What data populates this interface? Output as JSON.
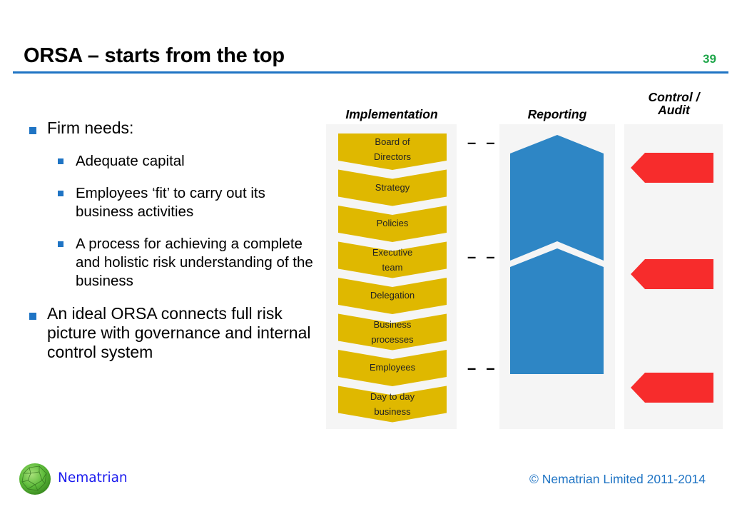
{
  "slide": {
    "title": "ORSA – starts from the top",
    "page_number": "39"
  },
  "bullets": {
    "level1_a": "Firm needs:",
    "sub": [
      "Adequate capital",
      "Employees ‘fit’ to carry out its business activities",
      "A process for achieving a complete and holistic risk understanding of the business"
    ],
    "level1_b": "An ideal ORSA connects full risk picture with governance and internal control system"
  },
  "diagram": {
    "columns": {
      "implementation": "Implementation",
      "reporting": "Reporting",
      "control_line1": "Control /",
      "control_line2": "Audit"
    },
    "implementation_steps": [
      {
        "l1": "Board of",
        "l2": "Directors"
      },
      {
        "l1": "Strategy",
        "l2": ""
      },
      {
        "l1": "Policies",
        "l2": ""
      },
      {
        "l1": "Executive",
        "l2": "team"
      },
      {
        "l1": "Delegation",
        "l2": ""
      },
      {
        "l1": "Business",
        "l2": "processes"
      },
      {
        "l1": "Employees",
        "l2": ""
      },
      {
        "l1": "Day to day",
        "l2": "business"
      }
    ],
    "connector": "– –",
    "colors": {
      "implementation": "#dfb800",
      "reporting": "#2e86c5",
      "control": "#f72c2c",
      "panel": "#f5f5f5",
      "accent": "#1f74c4",
      "page_number": "#1fa64a"
    }
  },
  "footer": {
    "brand": "Nematrian",
    "copyright": "© Nematrian Limited 2011-2014"
  }
}
